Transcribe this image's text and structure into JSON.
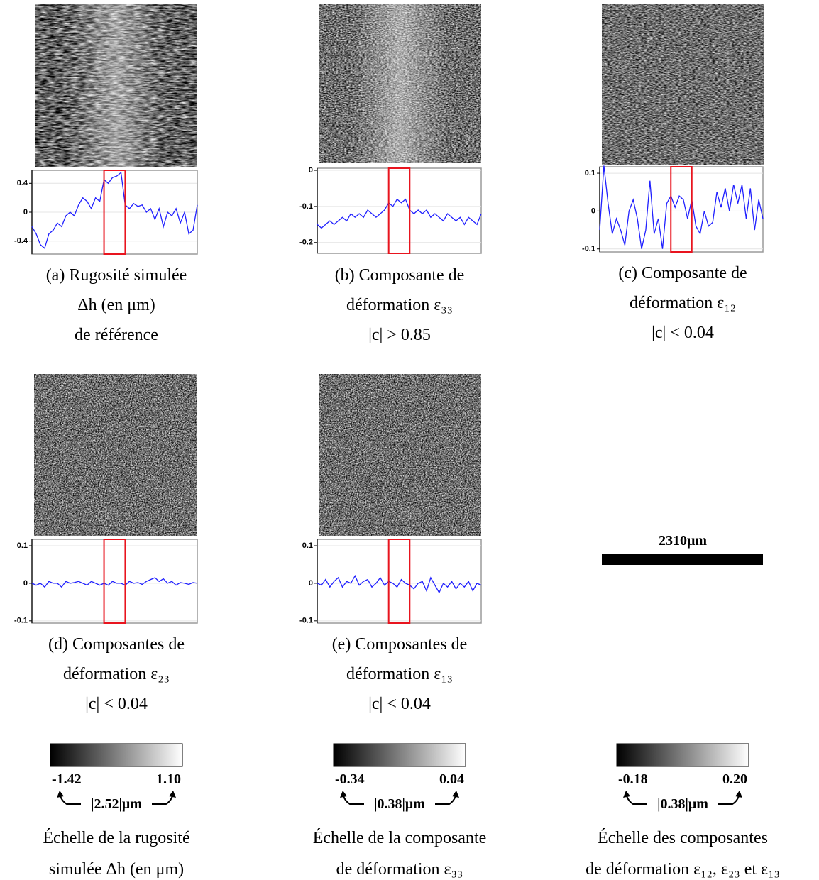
{
  "panels": [
    {
      "caption": [
        "(a) Rugosité simulée",
        "Δh (en μm)",
        "de référence"
      ],
      "chart": {
        "type": "line",
        "color": "#2020ff",
        "grid": true,
        "highlight": [
          17,
          22
        ],
        "highlight_color": "#e8141e",
        "ylim": [
          -0.58,
          0.58
        ],
        "yticks": [
          0.4,
          0,
          -0.4
        ],
        "values": [
          -0.2,
          -0.3,
          -0.45,
          -0.5,
          -0.3,
          -0.25,
          -0.15,
          -0.2,
          -0.05,
          0.0,
          -0.05,
          0.1,
          0.2,
          0.15,
          0.05,
          0.2,
          0.15,
          0.45,
          0.4,
          0.48,
          0.5,
          0.55,
          0.1,
          0.05,
          0.12,
          0.08,
          0.1,
          0.0,
          0.05,
          -0.1,
          0.05,
          -0.2,
          0.0,
          -0.05,
          0.05,
          -0.15,
          0.0,
          -0.3,
          -0.25,
          0.1
        ]
      }
    },
    {
      "caption": [
        "(b) Composante de",
        "déformation ε₃₃",
        "|c| > 0.85"
      ],
      "chart": {
        "type": "line",
        "color": "#2020ff",
        "grid": true,
        "highlight": [
          17,
          22
        ],
        "highlight_color": "#e8141e",
        "ylim": [
          -0.23,
          0.006
        ],
        "yticks": [
          0,
          -0.1,
          -0.2
        ],
        "values": [
          -0.15,
          -0.16,
          -0.15,
          -0.14,
          -0.15,
          -0.14,
          -0.13,
          -0.14,
          -0.12,
          -0.13,
          -0.12,
          -0.13,
          -0.11,
          -0.12,
          -0.13,
          -0.12,
          -0.11,
          -0.09,
          -0.1,
          -0.08,
          -0.09,
          -0.08,
          -0.11,
          -0.12,
          -0.11,
          -0.12,
          -0.11,
          -0.13,
          -0.12,
          -0.13,
          -0.14,
          -0.12,
          -0.13,
          -0.14,
          -0.13,
          -0.15,
          -0.13,
          -0.14,
          -0.15,
          -0.12
        ]
      }
    },
    {
      "caption": [
        "(c) Composante de",
        "déformation ε₁₂",
        "|c| < 0.04"
      ],
      "chart": {
        "type": "line",
        "color": "#2020ff",
        "grid": true,
        "highlight": [
          17,
          22
        ],
        "highlight_color": "#e8141e",
        "ylim": [
          -0.108,
          0.117
        ],
        "yticks": [
          0.1,
          0,
          -0.1
        ],
        "values": [
          -0.05,
          0.12,
          0.02,
          -0.06,
          -0.02,
          -0.05,
          -0.09,
          0.0,
          0.03,
          -0.02,
          -0.1,
          -0.05,
          0.08,
          -0.06,
          -0.02,
          -0.1,
          0.02,
          0.04,
          0.01,
          0.04,
          0.03,
          -0.02,
          0.03,
          -0.04,
          -0.06,
          0.0,
          -0.04,
          -0.03,
          0.05,
          0.01,
          0.06,
          0.0,
          0.07,
          0.02,
          0.07,
          -0.02,
          0.06,
          -0.05,
          0.03,
          -0.02
        ]
      }
    },
    {
      "caption": [
        "(d) Composantes de",
        "déformation ε₂₃",
        "|c| < 0.04"
      ],
      "chart": {
        "type": "line",
        "color": "#2020ff",
        "grid": true,
        "highlight": [
          17,
          22
        ],
        "highlight_color": "#e8141e",
        "ylim": [
          -0.106,
          0.117
        ],
        "yticks": [
          0.1,
          0,
          -0.1
        ],
        "values": [
          0.0,
          -0.005,
          0.0,
          -0.01,
          0.005,
          0.0,
          0.0,
          -0.01,
          0.005,
          0.0,
          0.002,
          0.005,
          0.0,
          -0.005,
          0.005,
          0.0,
          -0.005,
          0.0,
          -0.005,
          0.005,
          0.0,
          0.0,
          -0.005,
          0.005,
          0.0,
          0.002,
          -0.003,
          0.005,
          0.01,
          0.015,
          0.005,
          0.012,
          0.0,
          0.005,
          -0.005,
          0.002,
          0.0,
          -0.003,
          0.002,
          0.0
        ]
      }
    },
    {
      "caption": [
        "(e) Composantes de",
        "déformation ε₁₃",
        "|c| < 0.04"
      ],
      "chart": {
        "type": "line",
        "color": "#2020ff",
        "grid": true,
        "highlight": [
          17,
          22
        ],
        "highlight_color": "#e8141e",
        "ylim": [
          -0.106,
          0.117
        ],
        "yticks": [
          0.1,
          0,
          -0.1
        ],
        "values": [
          0.0,
          -0.005,
          0.01,
          -0.01,
          0.005,
          0.015,
          -0.01,
          0.005,
          0.0,
          0.02,
          -0.005,
          0.005,
          0.01,
          -0.01,
          0.0,
          0.015,
          -0.005,
          0.005,
          0.0,
          -0.01,
          0.01,
          0.0,
          -0.005,
          -0.015,
          0.0,
          0.005,
          -0.02,
          0.015,
          -0.005,
          -0.025,
          0.0,
          -0.01,
          0.005,
          -0.015,
          0.0,
          -0.01,
          0.005,
          -0.02,
          0.0,
          -0.005
        ]
      }
    }
  ],
  "scale_bar": {
    "label": "2310μm"
  },
  "colorbars": [
    {
      "ticks": [
        -1.42,
        {
          "value": 1.1,
          "label": "1.10"
        }
      ],
      "range_label": "|2.52|μm",
      "caption": [
        "Échelle de la rugosité",
        "simulée Δh (en μm)"
      ]
    },
    {
      "ticks": [
        -0.34,
        0.04
      ],
      "range_label": "|0.38|μm",
      "caption": [
        "Échelle de la composante",
        "de déformation ε₃₃"
      ]
    },
    {
      "ticks": [
        -0.18,
        {
          "value": 0.2,
          "label": "0.20"
        }
      ],
      "range_label": "|0.38|μm",
      "caption": [
        "Échelle des composantes",
        "de déformation ε₁₂, ε₂₃ et ε₁₃"
      ]
    }
  ]
}
